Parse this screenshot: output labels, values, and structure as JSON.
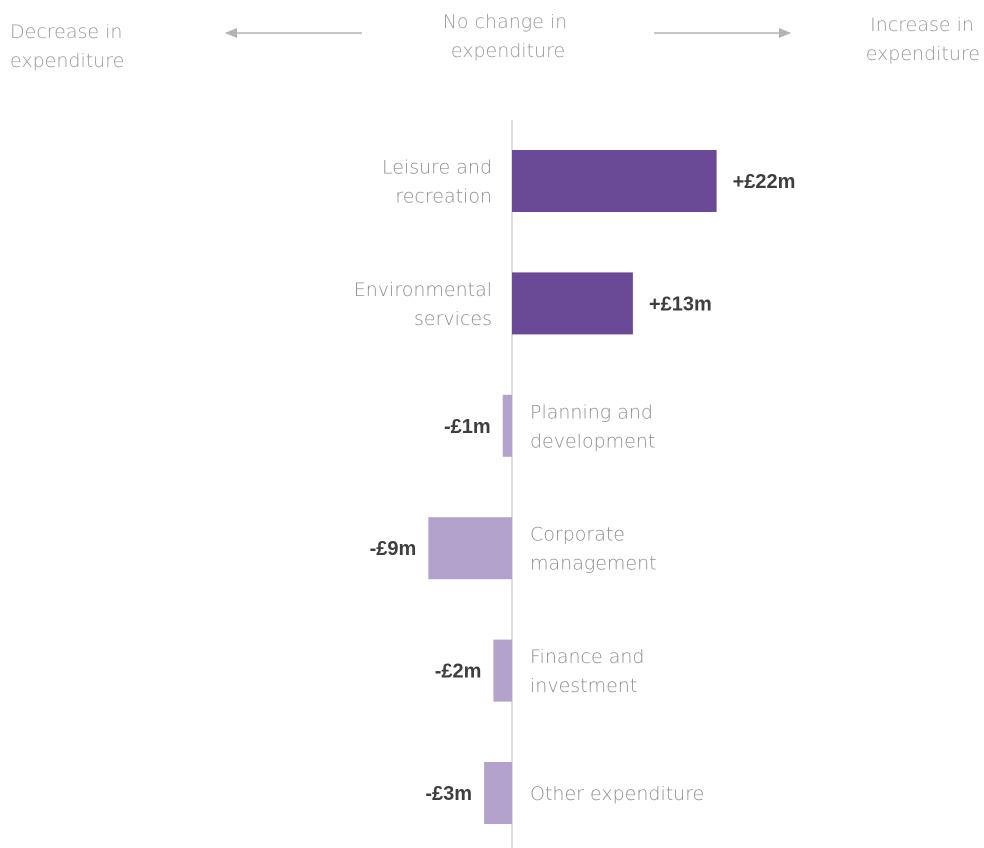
{
  "header": {
    "decrease": [
      "Decrease in",
      "expenditure"
    ],
    "no_change": [
      "No change in",
      "expenditure"
    ],
    "increase": [
      "Increase in",
      "expenditure"
    ]
  },
  "colors": {
    "increase_bar": "#6a4a97",
    "decrease_bar": "#b3a2cc",
    "axis": "#c8c8c8",
    "arrow": "#b3b3b3",
    "category_text": "#8f8f8f",
    "value_text": "#3e3e3e"
  },
  "chart_data": {
    "type": "bar",
    "orientation": "horizontal",
    "categories": [
      [
        "Leisure and",
        "recreation"
      ],
      [
        "Environmental",
        "services"
      ],
      [
        "Planning and",
        "development"
      ],
      [
        "Corporate",
        "management"
      ],
      [
        "Finance and",
        "investment"
      ],
      [
        "Other expenditure"
      ]
    ],
    "values": [
      22,
      13,
      -1,
      -9,
      -2,
      -3
    ],
    "value_labels": [
      "+£22m",
      "+£13m",
      "-£1m",
      "-£9m",
      "-£2m",
      "-£3m"
    ],
    "unit": "£m",
    "xlim": [
      -9,
      22
    ],
    "title": "",
    "xlabel": "",
    "ylabel": ""
  }
}
